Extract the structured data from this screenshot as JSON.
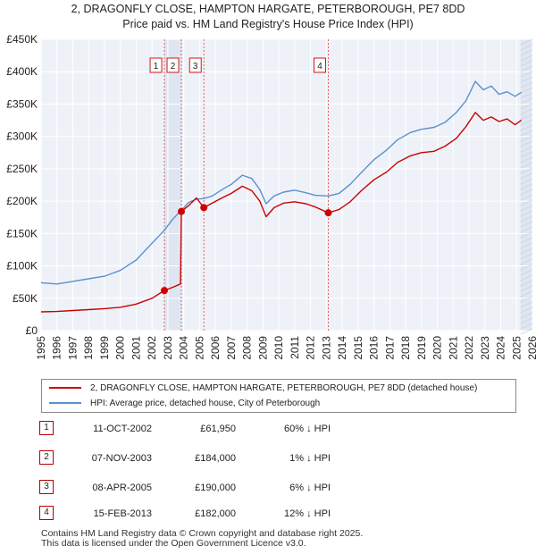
{
  "title_line1": "2, DRAGONFLY CLOSE, HAMPTON HARGATE, PETERBOROUGH, PE7 8DD",
  "title_line2": "Price paid vs. HM Land Registry's House Price Index (HPI)",
  "chart_data": {
    "type": "line",
    "title": "2, DRAGONFLY CLOSE, HAMPTON HARGATE, PETERBOROUGH, PE7 8DD",
    "subtitle": "Price paid vs. HM Land Registry's House Price Index (HPI)",
    "xlabel": "",
    "ylabel": "",
    "xlim": [
      1995,
      2026
    ],
    "ylim": [
      0,
      450000
    ],
    "x_ticks": [
      1995,
      1996,
      1997,
      1998,
      1999,
      2000,
      2001,
      2002,
      2003,
      2004,
      2005,
      2006,
      2007,
      2008,
      2009,
      2010,
      2011,
      2012,
      2013,
      2014,
      2015,
      2016,
      2017,
      2018,
      2019,
      2020,
      2021,
      2022,
      2023,
      2024,
      2025,
      2026
    ],
    "y_ticks": [
      0,
      50000,
      100000,
      150000,
      200000,
      250000,
      300000,
      350000,
      400000,
      450000
    ],
    "y_tick_labels": [
      "£0",
      "£50K",
      "£100K",
      "£150K",
      "£200K",
      "£250K",
      "£300K",
      "£350K",
      "£400K",
      "£450K"
    ],
    "grid": true,
    "series": [
      {
        "name": "2, DRAGONFLY CLOSE, HAMPTON HARGATE, PETERBOROUGH, PE7 8DD (detached house)",
        "color": "#cc0000",
        "x": [
          1995.0,
          1996.0,
          1997.0,
          1998.0,
          1999.0,
          2000.0,
          2001.0,
          2002.0,
          2002.78,
          2003.3,
          2003.8,
          2003.85,
          2004.3,
          2004.8,
          2005.27,
          2005.8,
          2006.5,
          2007.0,
          2007.7,
          2008.3,
          2008.8,
          2009.2,
          2009.7,
          2010.3,
          2011.0,
          2011.7,
          2012.3,
          2013.12,
          2013.8,
          2014.5,
          2015.2,
          2016.0,
          2016.8,
          2017.5,
          2018.3,
          2019.0,
          2019.8,
          2020.5,
          2021.2,
          2021.8,
          2022.4,
          2022.9,
          2023.4,
          2023.9,
          2024.4,
          2024.9,
          2025.3
        ],
        "y": [
          29000,
          29500,
          31000,
          32500,
          34000,
          36000,
          41000,
          50000,
          61950,
          67000,
          72000,
          184000,
          193000,
          205000,
          190000,
          197000,
          206000,
          212000,
          223000,
          216000,
          200000,
          176000,
          190000,
          197000,
          199000,
          196000,
          191000,
          182000,
          187000,
          199000,
          216000,
          233000,
          245000,
          260000,
          270000,
          275000,
          277000,
          285000,
          297000,
          315000,
          337000,
          325000,
          330000,
          323000,
          327000,
          318000,
          325000
        ]
      },
      {
        "name": "HPI: Average price, detached house, City of Peterborough",
        "color": "#5b8fd0",
        "x": [
          1995.0,
          1996.0,
          1997.0,
          1998.0,
          1999.0,
          2000.0,
          2001.0,
          2002.0,
          2002.78,
          2003.3,
          2003.85,
          2004.3,
          2004.8,
          2005.27,
          2005.8,
          2006.5,
          2007.0,
          2007.7,
          2008.3,
          2008.8,
          2009.2,
          2009.7,
          2010.3,
          2011.0,
          2011.7,
          2012.3,
          2013.12,
          2013.8,
          2014.5,
          2015.2,
          2016.0,
          2016.8,
          2017.5,
          2018.3,
          2019.0,
          2019.8,
          2020.5,
          2021.2,
          2021.8,
          2022.4,
          2022.9,
          2023.4,
          2023.9,
          2024.4,
          2024.9,
          2025.3
        ],
        "y": [
          74000,
          72000,
          76000,
          80000,
          84000,
          93000,
          109000,
          135000,
          155000,
          172000,
          186000,
          198000,
          203000,
          204000,
          208000,
          219000,
          226000,
          240000,
          235000,
          218000,
          196000,
          208000,
          214000,
          217000,
          213000,
          209000,
          208000,
          212000,
          226000,
          244000,
          264000,
          279000,
          295000,
          306000,
          311000,
          314000,
          322000,
          337000,
          355000,
          385000,
          372000,
          378000,
          365000,
          369000,
          362000,
          368000
        ]
      }
    ],
    "sale_markers": [
      {
        "label": "1",
        "x": 2002.78,
        "y": 61950
      },
      {
        "label": "2",
        "x": 2003.85,
        "y": 184000
      },
      {
        "label": "3",
        "x": 2005.27,
        "y": 190000
      },
      {
        "label": "4",
        "x": 2013.12,
        "y": 182000
      }
    ],
    "shaded_spans": [
      [
        2002.78,
        2003.85
      ],
      [
        2025.25,
        2026
      ]
    ]
  },
  "legend": {
    "property": "2, DRAGONFLY CLOSE, HAMPTON HARGATE, PETERBOROUGH, PE7 8DD (detached house)",
    "hpi": "HPI: Average price, detached house, City of Peterborough",
    "property_color": "#cc0000",
    "hpi_color": "#5b8fd0"
  },
  "sales": [
    {
      "num": "1",
      "date": "11-OCT-2002",
      "price": "£61,950",
      "hpi": "60% ↓ HPI"
    },
    {
      "num": "2",
      "date": "07-NOV-2003",
      "price": "£184,000",
      "hpi": "1% ↓ HPI"
    },
    {
      "num": "3",
      "date": "08-APR-2005",
      "price": "£190,000",
      "hpi": "6% ↓ HPI"
    },
    {
      "num": "4",
      "date": "15-FEB-2013",
      "price": "£182,000",
      "hpi": "12% ↓ HPI"
    }
  ],
  "footer": {
    "line1": "Contains HM Land Registry data © Crown copyright and database right 2025.",
    "line2": "This data is licensed under the Open Government Licence v3.0."
  }
}
